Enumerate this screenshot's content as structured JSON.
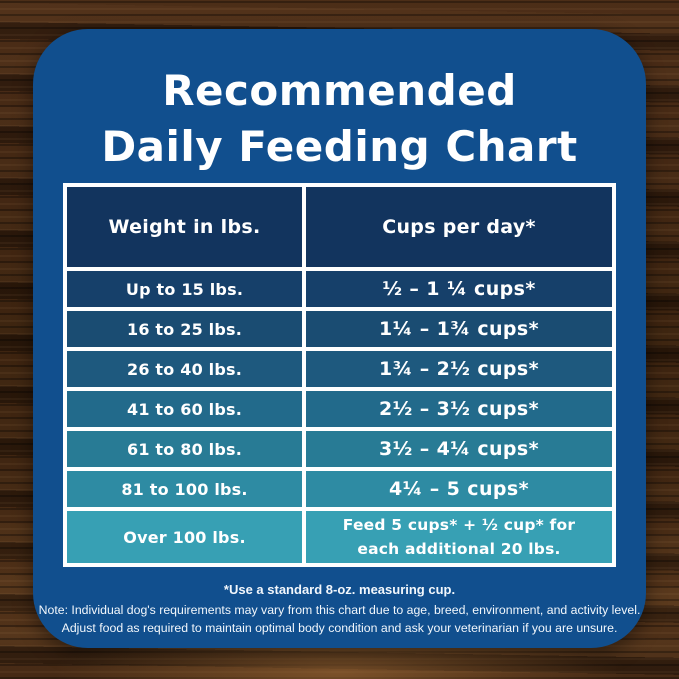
{
  "colors": {
    "panel": "#114f8e",
    "header_bg": "#12345e",
    "table_border": "#ffffff",
    "text": "#ffffff",
    "row_colors": [
      "#16406a",
      "#1a4c72",
      "#1e597e",
      "#226a8b",
      "#287b95",
      "#2e8ba3",
      "#37a0b4"
    ]
  },
  "title": {
    "line1": "Recommended",
    "line2": "Daily Feeding Chart"
  },
  "table": {
    "col1_header": "Weight in lbs.",
    "col2_header": "Cups per day*",
    "rows": [
      {
        "weight": "Up to 15 lbs.",
        "cups_lines": [
          "½ – 1 ¼ cups*"
        ]
      },
      {
        "weight": "16 to 25 lbs.",
        "cups_lines": [
          "1¼ – 1¾ cups*"
        ]
      },
      {
        "weight": "26 to 40 lbs.",
        "cups_lines": [
          "1¾ – 2½ cups*"
        ]
      },
      {
        "weight": "41 to 60 lbs.",
        "cups_lines": [
          "2½ – 3½ cups*"
        ]
      },
      {
        "weight": "61 to 80 lbs.",
        "cups_lines": [
          "3½ – 4¼ cups*"
        ]
      },
      {
        "weight": "81 to 100 lbs.",
        "cups_lines": [
          "4¼ – 5 cups*"
        ]
      },
      {
        "weight": "Over 100 lbs.",
        "cups_lines": [
          "Feed 5 cups* + ½ cup* for",
          "each additional 20 lbs."
        ]
      }
    ]
  },
  "notes": {
    "line1": "*Use a standard 8-oz. measuring cup.",
    "line2": "Note: Individual dog's requirements may vary from this chart due to age, breed, environment, and activity level.",
    "line3": "Adjust food as required to maintain optimal body condition and ask your veterinarian if you are unsure."
  },
  "chart_data": {
    "type": "table",
    "title": "Recommended Daily Feeding Chart",
    "columns": [
      "Weight in lbs.",
      "Cups per day*"
    ],
    "rows": [
      [
        "Up to 15 lbs.",
        "½ – 1 ¼ cups*"
      ],
      [
        "16 to 25 lbs.",
        "1¼ – 1¾ cups*"
      ],
      [
        "26 to 40 lbs.",
        "1¾ – 2½ cups*"
      ],
      [
        "41 to 60 lbs.",
        "2½ – 3½ cups*"
      ],
      [
        "61 to 80 lbs.",
        "3½ – 4¼ cups*"
      ],
      [
        "81 to 100 lbs.",
        "4¼ – 5 cups*"
      ],
      [
        "Over 100 lbs.",
        "Feed 5 cups* + ½ cup* for each additional 20 lbs."
      ]
    ],
    "cups_numeric": [
      {
        "min_cups": 0.5,
        "max_cups": 1.25
      },
      {
        "min_cups": 1.25,
        "max_cups": 1.75
      },
      {
        "min_cups": 1.75,
        "max_cups": 2.5
      },
      {
        "min_cups": 2.5,
        "max_cups": 3.5
      },
      {
        "min_cups": 3.5,
        "max_cups": 4.25
      },
      {
        "min_cups": 4.25,
        "max_cups": 5
      },
      {
        "base_cups": 5,
        "additional_cups_per_20_lbs": 0.5
      }
    ],
    "footnote": "*Use a standard 8-oz. measuring cup."
  }
}
